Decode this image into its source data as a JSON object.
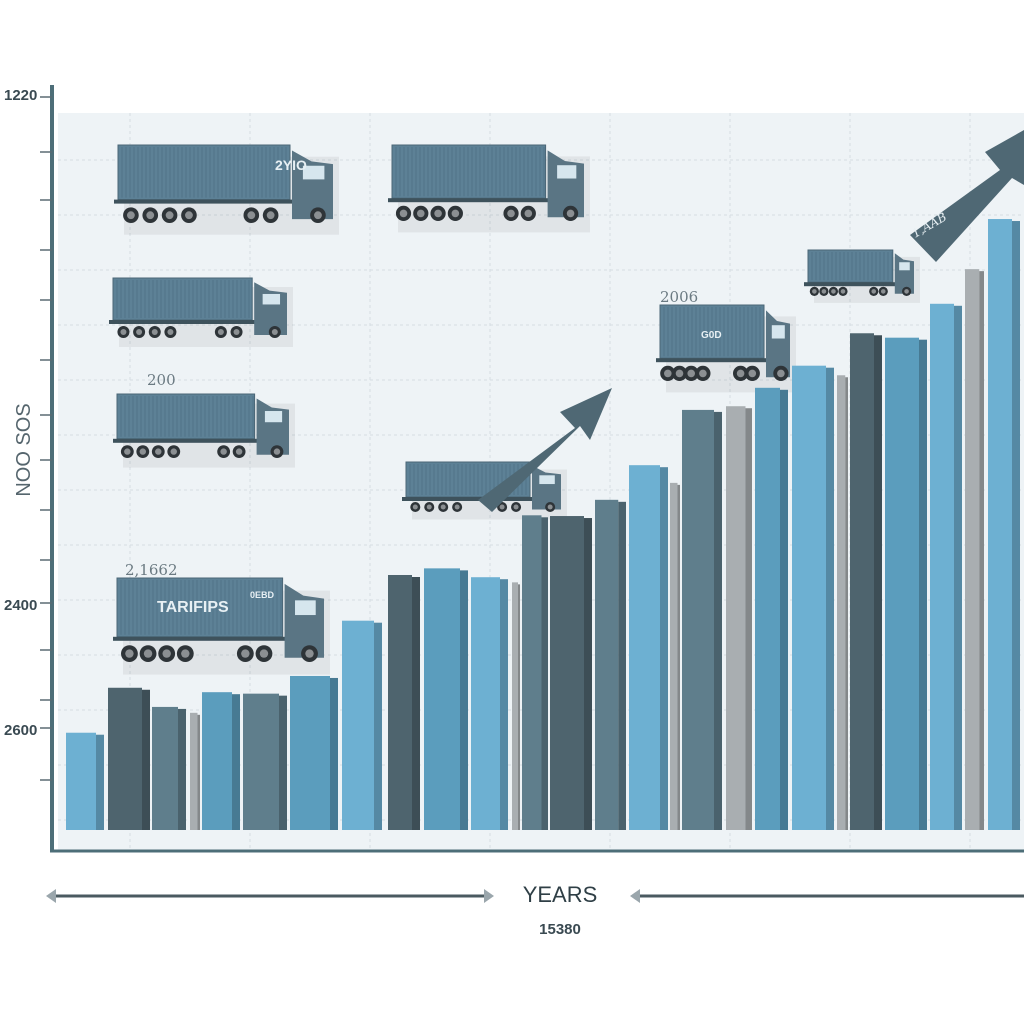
{
  "chart_data": {
    "type": "bar",
    "title": "",
    "xlabel": "YEARS",
    "xlabel_sub": "15380",
    "ylabel": "NOO SOS",
    "y_tick_labels": [
      "1220",
      "2400",
      "2600"
    ],
    "value_scale_note": "",
    "ylim": [
      0,
      100
    ],
    "grid": true,
    "legend": "none",
    "values": [
      13.2,
      19.3,
      16.7,
      15.9,
      18.7,
      18.5,
      20.9,
      28.4,
      34.6,
      35.5,
      34.3,
      33.6,
      42.7,
      42.6,
      44.8,
      49.5,
      47.1,
      57.0,
      57.5,
      60.0,
      63.0,
      61.7,
      67.4,
      66.8,
      71.4,
      76.1,
      82.9
    ],
    "bar_colors": [
      "light",
      "dark",
      "slate",
      "grey",
      "blue",
      "slate",
      "blue",
      "light",
      "dark",
      "blue",
      "light",
      "grey",
      "slate",
      "dark",
      "slate",
      "light",
      "grey",
      "slate",
      "grey",
      "blue",
      "light",
      "grey",
      "dark",
      "blue",
      "light",
      "grey",
      "light"
    ],
    "annotations": [
      "2YIO",
      "200",
      "2,1662",
      "TARIFIPS",
      "0EBD",
      "2006",
      "G0D",
      "1,AAB"
    ]
  },
  "colors": {
    "light": "#6db0d2",
    "blue": "#5b9dbd",
    "slate": "#5f7e8c",
    "dark": "#4e646e",
    "grey": "#a9aeb1",
    "axis": "#4d6e78",
    "truck": "#5d8196",
    "arrow": "#4f6874"
  }
}
